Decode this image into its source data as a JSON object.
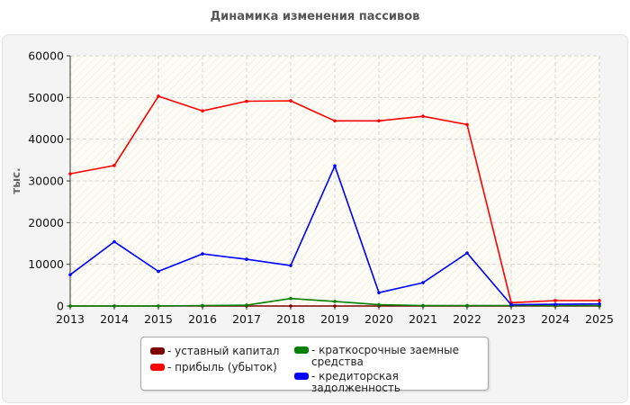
{
  "chart_data": {
    "type": "line",
    "title": "Динамика изменения пассивов",
    "ylabel": "тыс.",
    "xlabel": "",
    "ylim": [
      0,
      60000
    ],
    "yticks": [
      0,
      10000,
      20000,
      30000,
      40000,
      50000,
      60000
    ],
    "x": [
      "2013",
      "2014",
      "2015",
      "2016",
      "2017",
      "2018",
      "2019",
      "2020",
      "2021",
      "2022",
      "2023",
      "2024",
      "2025"
    ],
    "grid": true,
    "legend_position": "bottom-center",
    "series": [
      {
        "name": "- уставный капитал",
        "color": "#800000",
        "values": [
          0,
          0,
          0,
          0,
          0,
          0,
          0,
          0,
          0,
          0,
          0,
          0,
          0
        ]
      },
      {
        "name": "- прибыль (убыток)",
        "color": "#ff0000",
        "values": [
          31700,
          33700,
          50300,
          46800,
          49100,
          49200,
          44400,
          44400,
          45500,
          43500,
          800,
          1300,
          1300
        ]
      },
      {
        "name": "- краткосрочные заемные средства",
        "color": "#008000",
        "values": [
          0,
          0,
          0,
          100,
          200,
          1800,
          1100,
          300,
          100,
          100,
          100,
          100,
          100
        ]
      },
      {
        "name": "- кредиторская задолженность",
        "color": "#0000ff",
        "values": [
          7500,
          15400,
          8300,
          12500,
          11200,
          9700,
          33600,
          3200,
          5600,
          12700,
          300,
          400,
          500
        ]
      }
    ]
  }
}
